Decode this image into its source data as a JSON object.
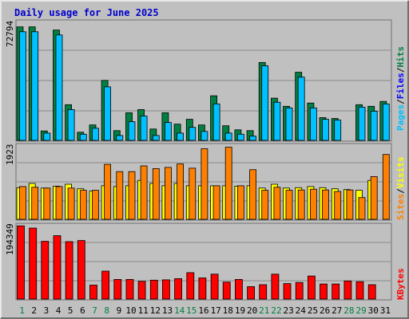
{
  "title": "Daily usage for June 2025",
  "colors": {
    "background": "#c0c0c0",
    "frame_light": "#e8e8e8",
    "frame_dark": "#707070",
    "grid": "#8a8a8a",
    "hits": "#008040",
    "files": "#00c0ff",
    "sites": "#ff8000",
    "visits": "#ffff00",
    "kbytes": "#ff0000",
    "weekday_label": "#000000",
    "weekend_label": "#008040",
    "title": "#0000cc"
  },
  "legend": {
    "top": {
      "pages": "Pages",
      "files": "Files",
      "hits": "Hits",
      "sep": "/"
    },
    "middle": {
      "sites": "Sites",
      "visits": "Visits",
      "sep": "/"
    },
    "bottom": {
      "kbytes": "KBytes"
    }
  },
  "chart_data": [
    {
      "type": "bar",
      "panel": "hits-files-pages",
      "y_max_label": "72794",
      "ylim": [
        0,
        72794
      ],
      "categories": [
        "1",
        "2",
        "3",
        "4",
        "5",
        "6",
        "7",
        "8",
        "9",
        "10",
        "11",
        "12",
        "13",
        "14",
        "15",
        "16",
        "17",
        "18",
        "19",
        "20",
        "21",
        "22",
        "23",
        "24",
        "25",
        "26",
        "27",
        "28",
        "29",
        "30",
        "31"
      ],
      "weekend_days": [
        "1",
        "7",
        "8",
        "14",
        "15",
        "21",
        "22",
        "28",
        "29"
      ],
      "series": [
        {
          "name": "Hits",
          "values": [
            70000,
            70000,
            5800,
            68000,
            22000,
            5000,
            9500,
            37000,
            6000,
            17000,
            19000,
            7000,
            17000,
            10000,
            13000,
            9500,
            27500,
            9000,
            6500,
            6000,
            48000,
            26000,
            21000,
            42000,
            23000,
            14000,
            13500,
            0,
            22000,
            21000,
            24000
          ]
        },
        {
          "name": "Files",
          "values": [
            67000,
            67000,
            4500,
            65000,
            19000,
            3800,
            7500,
            33000,
            3000,
            11500,
            15000,
            3000,
            11000,
            4500,
            8000,
            5500,
            22500,
            4500,
            3800,
            2600,
            46000,
            23500,
            20000,
            39000,
            20000,
            13000,
            12500,
            0,
            20500,
            18000,
            22500
          ]
        },
        {
          "name": "Pages",
          "values": [
            0,
            0,
            0,
            0,
            0,
            0,
            0,
            0,
            0,
            0,
            0,
            0,
            0,
            0,
            0,
            0,
            0,
            0,
            0,
            0,
            0,
            0,
            0,
            0,
            0,
            0,
            0,
            0,
            0,
            0,
            0
          ]
        }
      ]
    },
    {
      "type": "bar",
      "panel": "visits-sites",
      "y_max_label": "1923",
      "ylim": [
        0,
        1923
      ],
      "categories": [
        "1",
        "2",
        "3",
        "4",
        "5",
        "6",
        "7",
        "8",
        "9",
        "10",
        "11",
        "12",
        "13",
        "14",
        "15",
        "16",
        "17",
        "18",
        "19",
        "20",
        "21",
        "22",
        "23",
        "24",
        "25",
        "26",
        "27",
        "28",
        "29",
        "30",
        "31"
      ],
      "series": [
        {
          "name": "Visits",
          "values": [
            830,
            940,
            820,
            870,
            920,
            800,
            740,
            880,
            860,
            880,
            1020,
            940,
            880,
            940,
            880,
            880,
            880,
            880,
            870,
            880,
            820,
            920,
            820,
            830,
            860,
            830,
            800,
            780,
            760,
            1020,
            0
          ]
        },
        {
          "name": "Sites",
          "values": [
            860,
            840,
            820,
            860,
            820,
            760,
            760,
            1440,
            1250,
            1250,
            1400,
            1330,
            1360,
            1450,
            1340,
            1850,
            880,
            1890,
            880,
            1300,
            760,
            840,
            760,
            770,
            790,
            770,
            730,
            770,
            570,
            1120,
            1700
          ]
        }
      ]
    },
    {
      "type": "bar",
      "panel": "kbytes",
      "y_max_label": "194349",
      "ylim": [
        0,
        194349
      ],
      "categories": [
        "1",
        "2",
        "3",
        "4",
        "5",
        "6",
        "7",
        "8",
        "9",
        "10",
        "11",
        "12",
        "13",
        "14",
        "15",
        "16",
        "17",
        "18",
        "19",
        "20",
        "21",
        "22",
        "23",
        "24",
        "25",
        "26",
        "27",
        "28",
        "29",
        "30",
        "31"
      ],
      "series": [
        {
          "name": "KBytes",
          "values": [
            194000,
            188000,
            153000,
            168000,
            152000,
            155000,
            37000,
            74000,
            52000,
            52000,
            47000,
            50000,
            51000,
            54000,
            70000,
            56000,
            66000,
            45000,
            52000,
            33000,
            38000,
            66000,
            41000,
            44000,
            61000,
            40000,
            40000,
            48000,
            46000,
            38000,
            0
          ]
        }
      ]
    }
  ]
}
